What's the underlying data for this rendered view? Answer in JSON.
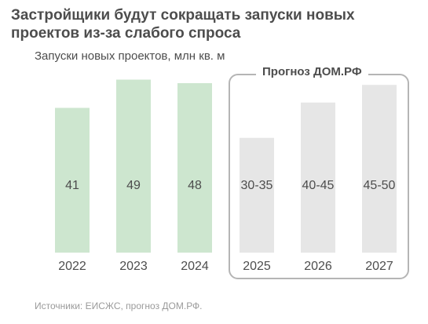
{
  "title_lines": [
    "Застройщики будут сокращать запуски новых",
    "проектов из-за слабого спроса"
  ],
  "forecast_label": "Прогноз ДОМ.РФ",
  "source": "Источники: ЕИСЖС, прогноз ДОМ.РФ.",
  "colors": {
    "actual": "#cde6cf",
    "forecast": "#e6e6e6",
    "text": "#4d4d4d",
    "box": "#b5b5b5"
  },
  "chart_data": {
    "type": "bar",
    "title": "Застройщики будут сокращать запуски новых проектов из-за слабого спроса",
    "ylabel": "Запуски новых проектов, млн кв. м",
    "xlabel": "",
    "categories": [
      "2022",
      "2023",
      "2024",
      "2025",
      "2026",
      "2027"
    ],
    "values": [
      41,
      49,
      48,
      32.5,
      42.5,
      47.5
    ],
    "value_labels": [
      "41",
      "49",
      "48",
      "30-35",
      "40-45",
      "45-50"
    ],
    "forecast": [
      false,
      false,
      false,
      true,
      true,
      true
    ],
    "ylim": [
      0,
      52
    ],
    "grid": false,
    "legend": "none"
  }
}
